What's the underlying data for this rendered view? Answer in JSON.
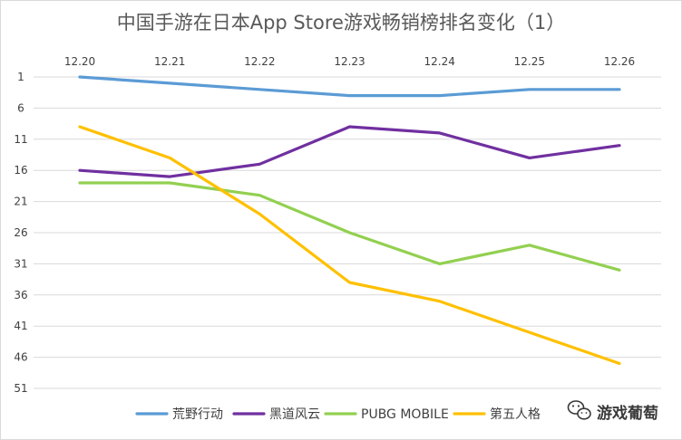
{
  "chart_data": {
    "type": "line",
    "title": "中国手游在日本App Store游戏畅销榜排名变化（1）",
    "x": [
      "12.20",
      "12.21",
      "12.22",
      "12.23",
      "12.24",
      "12.25",
      "12.26"
    ],
    "y_ticks": [
      "1",
      "6",
      "11",
      "16",
      "21",
      "26",
      "31",
      "36",
      "41",
      "46",
      "51"
    ],
    "y_axis": {
      "min": 1,
      "max": 51,
      "reversed": true
    },
    "x_axis_position": "top",
    "grid": "horizontal",
    "legend_position": "bottom",
    "series": [
      {
        "name": "荒野行动",
        "color": "#5b9bd5",
        "values": [
          1,
          2,
          3,
          4,
          4,
          3,
          3
        ]
      },
      {
        "name": "黑道风云",
        "color": "#7030a0",
        "values": [
          16,
          17,
          15,
          9,
          10,
          14,
          12
        ]
      },
      {
        "name": "PUBG MOBILE",
        "color": "#92d050",
        "values": [
          18,
          18,
          20,
          26,
          31,
          28,
          32
        ]
      },
      {
        "name": "第五人格",
        "color": "#ffc000",
        "values": [
          9,
          14,
          23,
          34,
          37,
          42,
          47
        ]
      }
    ]
  },
  "watermark": {
    "text": "游戏葡萄",
    "icon": "wechat-icon"
  }
}
